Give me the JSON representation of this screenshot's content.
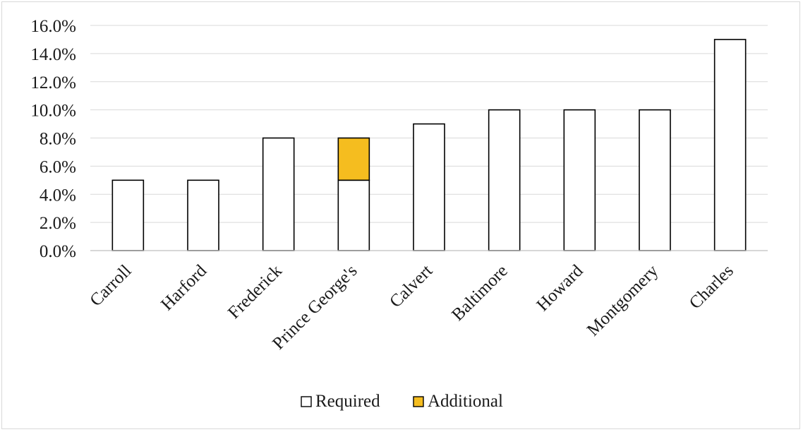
{
  "chart_data": {
    "type": "bar",
    "stacked": true,
    "categories": [
      "Carroll",
      "Harford",
      "Frederick",
      "Prince George's",
      "Calvert",
      "Baltimore",
      "Howard",
      "Montgomery",
      "Charles"
    ],
    "series": [
      {
        "name": "Required",
        "values": [
          5,
          5,
          8,
          5,
          9,
          10,
          10,
          10,
          15
        ],
        "color": "#ffffff"
      },
      {
        "name": "Additional",
        "values": [
          0,
          0,
          0,
          3,
          0,
          0,
          0,
          0,
          0
        ],
        "color": "#f5bd1f"
      }
    ],
    "y_ticks": [
      "0.0%",
      "2.0%",
      "4.0%",
      "6.0%",
      "8.0%",
      "10.0%",
      "12.0%",
      "14.0%",
      "16.0%"
    ],
    "ylim": [
      0,
      16
    ],
    "grid": true,
    "legend_position": "bottom",
    "colors": {
      "bar_border": "#000000",
      "grid": "#d9d9d9",
      "axis": "#bfbfbf"
    }
  }
}
